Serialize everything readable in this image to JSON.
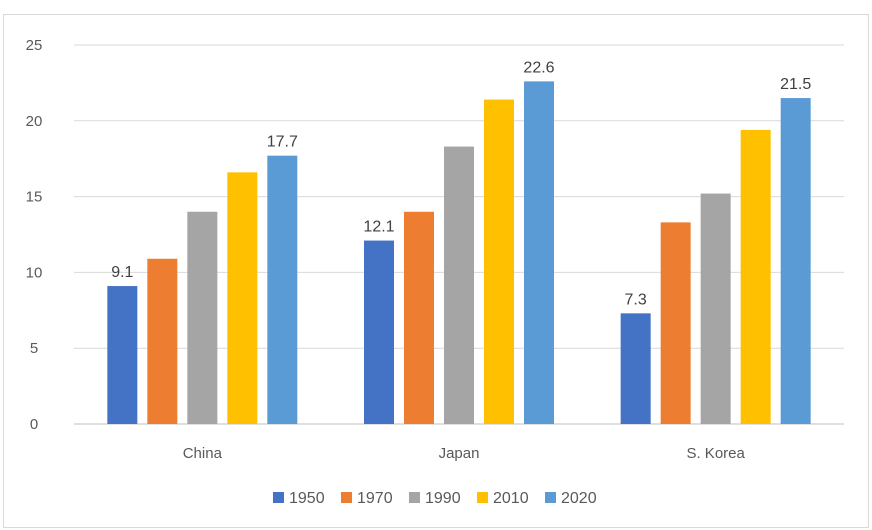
{
  "chart_data": {
    "type": "bar",
    "title": "",
    "xlabel": "",
    "ylabel": "",
    "categories": [
      "China",
      "Japan",
      "S. Korea"
    ],
    "ylim": [
      0,
      25
    ],
    "yticks": [
      0,
      5,
      10,
      15,
      20,
      25
    ],
    "grid": true,
    "legend_position": "bottom",
    "series": [
      {
        "name": "1950",
        "color": "#4472c4",
        "values": [
          9.1,
          12.1,
          7.3
        ]
      },
      {
        "name": "1970",
        "color": "#ed7d31",
        "values": [
          10.9,
          14.0,
          13.3
        ]
      },
      {
        "name": "1990",
        "color": "#a5a5a5",
        "values": [
          14.0,
          18.3,
          15.2
        ]
      },
      {
        "name": "2010",
        "color": "#ffc000",
        "values": [
          16.6,
          21.4,
          19.4
        ]
      },
      {
        "name": "2020",
        "color": "#5b9bd5",
        "values": [
          17.7,
          22.6,
          21.5
        ]
      }
    ],
    "data_labels": [
      {
        "series": 0,
        "category": 0,
        "text": "9.1"
      },
      {
        "series": 4,
        "category": 0,
        "text": "17.7"
      },
      {
        "series": 0,
        "category": 1,
        "text": "12.1"
      },
      {
        "series": 4,
        "category": 1,
        "text": "22.6"
      },
      {
        "series": 0,
        "category": 2,
        "text": "7.3"
      },
      {
        "series": 4,
        "category": 2,
        "text": "21.5"
      }
    ]
  }
}
